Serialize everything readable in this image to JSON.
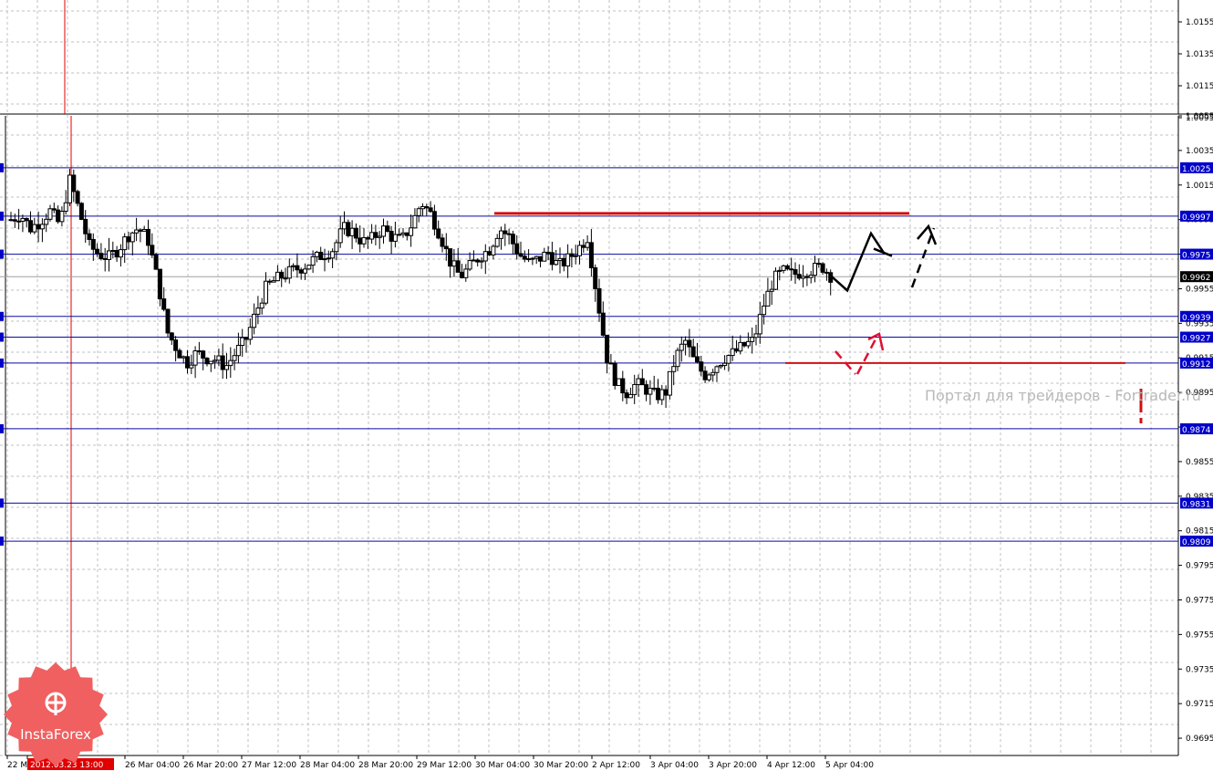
{
  "chart_data": {
    "type": "candlestick",
    "instrument_hint": "",
    "y_axis": {
      "min": 0.9685,
      "max": 1.0055,
      "ticks": [
        "1.0055",
        "1.0035",
        "1.0015",
        "0.9995",
        "0.9975",
        "0.9955",
        "0.9935",
        "0.9915",
        "0.9895",
        "0.9875",
        "0.9855",
        "0.9835",
        "0.9815",
        "0.9795",
        "0.9775",
        "0.9755",
        "0.9735",
        "0.9715",
        "0.9695"
      ],
      "upper_panel_ticks": [
        "1.0155",
        "1.0135",
        "1.0115",
        "1.0095"
      ]
    },
    "x_axis": {
      "ticks": [
        "22 M",
        "2012.03.23 13:00",
        "26 Mar 04:00",
        "26 Mar 20:00",
        "27 Mar 12:00",
        "28 Mar 04:00",
        "28 Mar 20:00",
        "29 Mar 12:00",
        "30 Mar 04:00",
        "30 Mar 20:00",
        "2 Apr 12:00",
        "3 Apr 04:00",
        "3 Apr 20:00",
        "4 Apr 12:00",
        "5 Apr 04:00"
      ],
      "highlighted_tick": "2012.03.23 13:00"
    },
    "levels": [
      {
        "value": 1.0025,
        "label": "1.0025"
      },
      {
        "value": 0.9997,
        "label": "0.9997"
      },
      {
        "value": 0.9975,
        "label": "0.9975"
      },
      {
        "value": 0.9939,
        "label": "0.9939"
      },
      {
        "value": 0.9927,
        "label": "0.9927"
      },
      {
        "value": 0.9912,
        "label": "0.9912"
      },
      {
        "value": 0.9874,
        "label": "0.9874"
      },
      {
        "value": 0.9831,
        "label": "0.9831"
      },
      {
        "value": 0.9809,
        "label": "0.9809"
      }
    ],
    "current_price": {
      "value": 0.9962,
      "label": "0.9962"
    },
    "price_path": [
      0.9995,
      0.9998,
      0.999,
      0.9994,
      1.0,
      0.9992,
      1.0018,
      1.0,
      0.998,
      0.9975,
      0.9973,
      0.9978,
      0.9986,
      0.999,
      0.9984,
      0.996,
      0.993,
      0.992,
      0.9912,
      0.9918,
      0.9915,
      0.9914,
      0.991,
      0.9918,
      0.9925,
      0.994,
      0.9955,
      0.996,
      0.9963,
      0.9966,
      0.9968,
      0.9972,
      0.9975,
      0.9978,
      0.999,
      0.9988,
      0.9982,
      0.9984,
      0.999,
      0.9985,
      0.9983,
      0.9992,
      1.0005,
      0.9998,
      0.9985,
      0.997,
      0.9962,
      0.9968,
      0.9974,
      0.9978,
      0.999,
      0.9985,
      0.9975,
      0.997,
      0.9972,
      0.9976,
      0.9968,
      0.9972,
      0.9978,
      0.9985,
      0.995,
      0.9915,
      0.99,
      0.9895,
      0.99,
      0.9897,
      0.9893,
      0.9895,
      0.9915,
      0.9925,
      0.9912,
      0.9905,
      0.991,
      0.9915,
      0.9918,
      0.9922,
      0.9925,
      0.9945,
      0.996,
      0.9965,
      0.9963,
      0.9965,
      0.9966,
      0.9968,
      0.9962
    ],
    "resistance_line_value": 0.9997,
    "support_line_value": 0.9912,
    "forecast_black": [
      0.9962,
      0.9954,
      0.9987,
      0.9975,
      1.0025
    ],
    "forecast_red": [
      0.9945,
      0.993,
      0.9955
    ]
  },
  "watermark": "Портал для трейдеров - Fortrader.ru",
  "logo": {
    "text": "InstaForex",
    "icon": "instaforex-icon"
  },
  "colors": {
    "level_line": "#0a0aa0",
    "level_label_bg": "#0000c8",
    "resistance_red": "#d01010",
    "forecast_black": "#000000",
    "forecast_red": "#e01030",
    "vline_red": "#e00000",
    "grid": "#c0c0c0",
    "logo_red": "#f06060"
  }
}
